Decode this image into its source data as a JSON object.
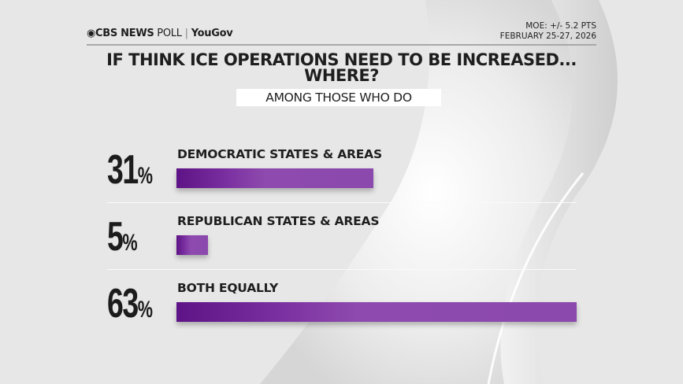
{
  "header": {
    "brand": "CBS NEWS",
    "brand_suffix": "POLL",
    "partner": "YouGov",
    "moe": "MOE: +/- 5.2 PTS",
    "dates": "FEBRUARY 25-27, 2026"
  },
  "chart_data": {
    "type": "bar",
    "orientation": "horizontal",
    "title": "IF THINK ICE OPERATIONS NEED TO BE INCREASED... WHERE?",
    "subtitle": "AMONG THOSE WHO DO",
    "categories": [
      "DEMOCRATIC STATES & AREAS",
      "REPUBLICAN STATES & AREAS",
      "BOTH EQUALLY"
    ],
    "values": [
      31,
      5,
      63
    ],
    "value_labels": [
      "31",
      "5",
      "63"
    ],
    "unit": "%",
    "bar_color": "#8c49ad",
    "xlim": [
      0,
      63
    ]
  }
}
